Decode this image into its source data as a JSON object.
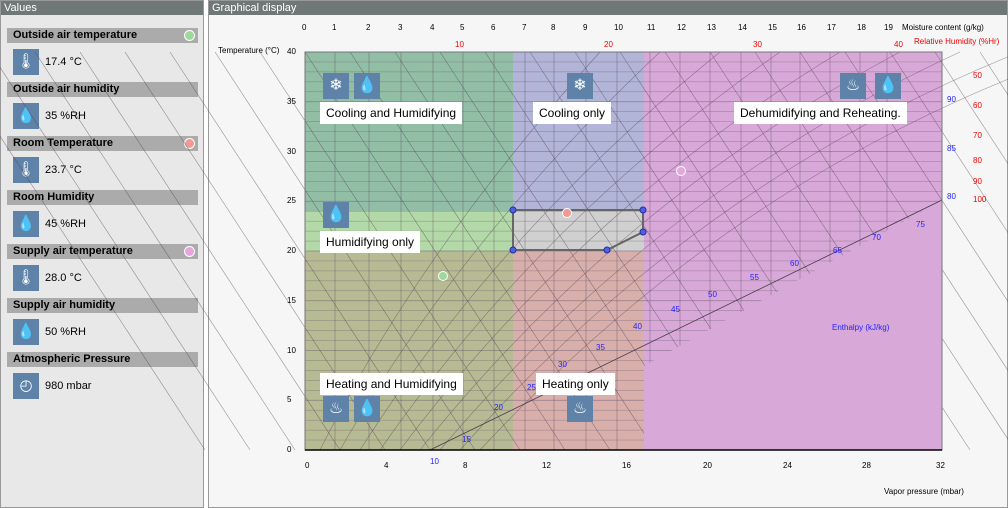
{
  "values_panel": {
    "title": "Values",
    "items": [
      {
        "label": "Outside air temperature",
        "value": "17.4 °C",
        "icon": "thermometer-icon",
        "dot": "#9ed99a"
      },
      {
        "label": "Outside air humidity",
        "value": "35 %RH",
        "icon": "humidity-drops-icon"
      },
      {
        "label": "Room Temperature",
        "value": "23.7 °C",
        "icon": "thermometer-icon",
        "dot": "#f09a94"
      },
      {
        "label": "Room Humidity",
        "value": "45 %RH",
        "icon": "humidity-drops-icon"
      },
      {
        "label": "Supply air temperature",
        "value": "28.0 °C",
        "icon": "thermometer-icon",
        "dot": "#e6a6dc"
      },
      {
        "label": "Supply air humidity",
        "value": "50 %RH",
        "icon": "humidity-drops-icon"
      },
      {
        "label": "Atmospheric Pressure",
        "value": "980 mbar",
        "icon": "gauge-icon"
      }
    ]
  },
  "chart_panel": {
    "title": "Graphical display",
    "y_label": "Temperature (°C)",
    "moisture_label": "Moisture content (g/kg)",
    "rh_label": "Relative Humidity (%Hr)",
    "vapor_label": "Vapor pressure (mbar)",
    "enthalpy_label": "Enthalpy (kJ/kg)",
    "zones": [
      "Cooling and Humidifying",
      "Cooling only",
      "Dehumidifying and Reheating.",
      "Humidifying only",
      "Heating and Humidifying",
      "Heating only"
    ],
    "zone_colors": {
      "cool_humid": "#93bea6",
      "cool": "#b2b4d8",
      "dehum": "#d8a9d8",
      "humid": "#b3d9a8",
      "heat_humid": "#b6bb94",
      "heat": "#d9afac",
      "comfort": "#d0d0d0"
    }
  },
  "chart_data": {
    "type": "psychrometric",
    "y_ticks": [
      "0",
      "5",
      "10",
      "15",
      "20",
      "25",
      "30",
      "35",
      "40"
    ],
    "moisture_ticks": [
      "0",
      "1",
      "2",
      "3",
      "4",
      "5",
      "6",
      "7",
      "8",
      "9",
      "10",
      "11",
      "12",
      "13",
      "14",
      "15",
      "16",
      "17",
      "18",
      "19"
    ],
    "vapor_ticks": [
      "0",
      "4",
      "8",
      "12",
      "16",
      "20",
      "24",
      "28",
      "32"
    ],
    "rh_top_ticks": [
      "10",
      "20",
      "30",
      "40"
    ],
    "rh_right_ticks": [
      "50",
      "60",
      "70",
      "80",
      "90",
      "100"
    ],
    "blue_right_ticks": [
      "90",
      "85",
      "80"
    ],
    "enthalpy_ticks": [
      "10",
      "15",
      "20",
      "25",
      "30",
      "35",
      "40",
      "45",
      "50",
      "55",
      "60",
      "65",
      "70",
      "75"
    ],
    "points": [
      {
        "name": "Outside air",
        "temp": 17.4,
        "rh": 35
      },
      {
        "name": "Room",
        "temp": 23.7,
        "rh": 45
      },
      {
        "name": "Supply air",
        "temp": 28.0,
        "rh": 50
      }
    ],
    "comfort_zone_temp": [
      20,
      24
    ]
  }
}
